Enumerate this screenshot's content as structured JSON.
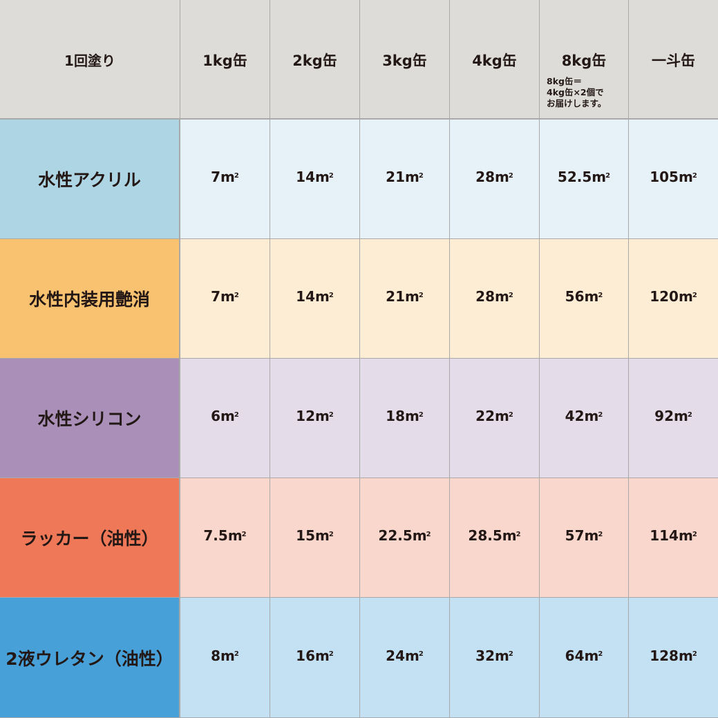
{
  "header": {
    "corner": "1回塗り",
    "columns": [
      "1kg缶",
      "2kg缶",
      "3kg缶",
      "4kg缶",
      "8kg缶",
      "一斗缶"
    ],
    "note_8kg": "8kg缶＝\n4kg缶×2個で\nお届けします。"
  },
  "unit": "㎡",
  "rows": [
    {
      "label": "水性アクリル",
      "values": [
        "7",
        "14",
        "21",
        "28",
        "52.5",
        "105"
      ],
      "label_color": "#aed5e4",
      "cell_color": "#e6f2f7"
    },
    {
      "label": "水性内装用艶消",
      "values": [
        "7",
        "14",
        "21",
        "28",
        "56",
        "120"
      ],
      "label_color": "#f9c270",
      "cell_color": "#feedd5"
    },
    {
      "label": "水性シリコン",
      "values": [
        "6",
        "12",
        "18",
        "22",
        "42",
        "92"
      ],
      "label_color": "#aa90b9",
      "cell_color": "#e5dcea"
    },
    {
      "label": "ラッカー（油性）",
      "values": [
        "7.5",
        "15",
        "22.5",
        "28.5",
        "57",
        "114"
      ],
      "label_color": "#ee7857",
      "cell_color": "#f9d7cd"
    },
    {
      "label": "2液ウレタン（油性）",
      "values": [
        "8",
        "16",
        "24",
        "32",
        "64",
        "128"
      ],
      "label_color": "#47a0d8",
      "cell_color": "#c3e1f3"
    }
  ]
}
